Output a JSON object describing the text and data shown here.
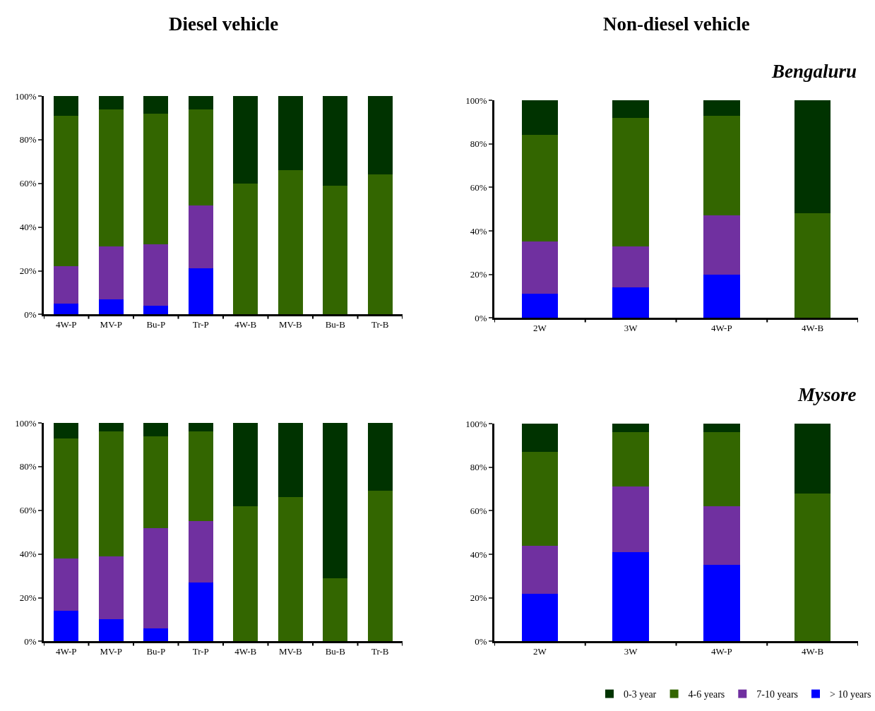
{
  "chart_data": [
    {
      "type": "bar",
      "title": "Diesel vehicle",
      "stacked": true,
      "legend": false,
      "categories": [
        "4W-P",
        "MV-P",
        "Bu-P",
        "Tr-P",
        "4W-B",
        "MV-B",
        "Bu-B",
        "Tr-B"
      ],
      "ylim": [
        0,
        100
      ],
      "yticks": [
        {
          "value": 0,
          "label": "0%"
        },
        {
          "value": 20,
          "label": "20%"
        },
        {
          "value": 40,
          "label": "40%"
        },
        {
          "value": 60,
          "label": "60%"
        },
        {
          "value": 80,
          "label": "80%"
        },
        {
          "value": 100,
          "label": "100%"
        }
      ],
      "series": [
        {
          "color": "#0000ff",
          "values": [
            5,
            7,
            4,
            21,
            0,
            0,
            0,
            0
          ]
        },
        {
          "color": "#7030a0",
          "values": [
            17,
            24,
            28,
            29,
            0,
            0,
            0,
            0
          ]
        },
        {
          "color": "#336600",
          "values": [
            69,
            63,
            60,
            44,
            60,
            66,
            59,
            64
          ]
        },
        {
          "color": "#003300",
          "values": [
            9,
            6,
            8,
            6,
            40,
            34,
            41,
            36
          ]
        }
      ]
    },
    {
      "type": "bar",
      "title": "Non-diesel vehicle",
      "subtitle": "Bengaluru",
      "stacked": true,
      "legend": false,
      "categories": [
        "2W",
        "3W",
        "4W-P",
        "4W-B"
      ],
      "ylim": [
        0,
        100
      ],
      "yticks": [
        {
          "value": 0,
          "label": "0%"
        },
        {
          "value": 20,
          "label": "20%"
        },
        {
          "value": 40,
          "label": "40%"
        },
        {
          "value": 60,
          "label": "60%"
        },
        {
          "value": 80,
          "label": "80%"
        },
        {
          "value": 100,
          "label": "100%"
        }
      ],
      "series": [
        {
          "color": "#0000ff",
          "values": [
            11,
            14,
            20,
            0
          ]
        },
        {
          "color": "#7030a0",
          "values": [
            24,
            19,
            27,
            0
          ]
        },
        {
          "color": "#336600",
          "values": [
            49,
            59,
            46,
            48
          ]
        },
        {
          "color": "#003300",
          "values": [
            16,
            8,
            7,
            52
          ]
        }
      ]
    },
    {
      "type": "bar",
      "stacked": true,
      "legend": false,
      "categories": [
        "4W-P",
        "MV-P",
        "Bu-P",
        "Tr-P",
        "4W-B",
        "MV-B",
        "Bu-B",
        "Tr-B"
      ],
      "ylim": [
        0,
        100
      ],
      "yticks": [
        {
          "value": 0,
          "label": "0%"
        },
        {
          "value": 20,
          "label": "20%"
        },
        {
          "value": 40,
          "label": "40%"
        },
        {
          "value": 60,
          "label": "60%"
        },
        {
          "value": 80,
          "label": "80%"
        },
        {
          "value": 100,
          "label": "100%"
        }
      ],
      "series": [
        {
          "color": "#0000ff",
          "values": [
            14,
            10,
            6,
            27,
            0,
            0,
            0,
            0
          ]
        },
        {
          "color": "#7030a0",
          "values": [
            24,
            29,
            46,
            28,
            0,
            0,
            0,
            0
          ]
        },
        {
          "color": "#336600",
          "values": [
            55,
            57,
            42,
            41,
            62,
            66,
            29,
            69
          ]
        },
        {
          "color": "#003300",
          "values": [
            7,
            4,
            6,
            4,
            38,
            34,
            71,
            31
          ]
        }
      ]
    },
    {
      "type": "bar",
      "subtitle": "Mysore",
      "stacked": true,
      "legend": "bottom right",
      "categories": [
        "2W",
        "3W",
        "4W-P",
        "4W-B"
      ],
      "ylim": [
        0,
        100
      ],
      "yticks": [
        {
          "value": 0,
          "label": "0%"
        },
        {
          "value": 20,
          "label": "20%"
        },
        {
          "value": 40,
          "label": "40%"
        },
        {
          "value": 60,
          "label": "60%"
        },
        {
          "value": 80,
          "label": "80%"
        },
        {
          "value": 100,
          "label": "100%"
        }
      ],
      "series": [
        {
          "name": "> 10 years",
          "color": "#0000ff",
          "values": [
            22,
            41,
            35,
            0
          ]
        },
        {
          "name": "7-10 years",
          "color": "#7030a0",
          "values": [
            22,
            30,
            27,
            0
          ]
        },
        {
          "name": "4-6 years",
          "color": "#336600",
          "values": [
            43,
            25,
            34,
            68
          ]
        },
        {
          "name": "0-3 year",
          "color": "#003300",
          "values": [
            13,
            4,
            4,
            32
          ]
        }
      ]
    }
  ]
}
